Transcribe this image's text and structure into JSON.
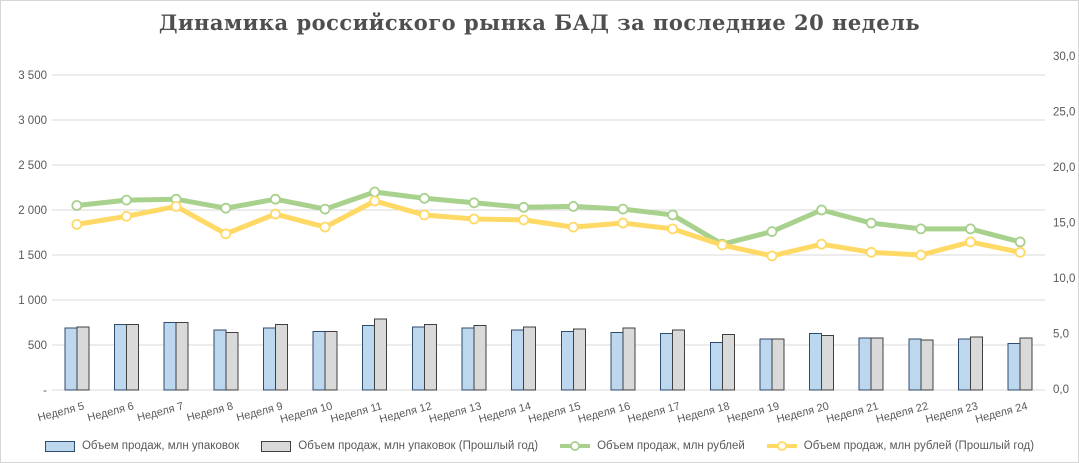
{
  "title": "Динамика российского рынка БАД за последние 20 недель",
  "colors": {
    "title_text": "#4f4f4f",
    "axis_text": "#595959",
    "gridline": "#d9d9d9",
    "frame_border": "#d6d6d6",
    "bar_current_fill": "#bdd7ee",
    "bar_current_stroke": "#2f4b6e",
    "bar_previous_fill": "#d9d9d9",
    "bar_previous_stroke": "#404040",
    "line_current": "#a9d18e",
    "line_previous": "#ffd966",
    "marker_fill": "#ffffff"
  },
  "chart_data": {
    "type": "combo-bar-line",
    "title": "Динамика российского рынка БАД за последние 20 недель",
    "categories": [
      "Неделя 5",
      "Неделя 6",
      "Неделя 7",
      "Неделя 8",
      "Неделя 9",
      "Неделя 10",
      "Неделя 11",
      "Неделя 12",
      "Неделя 13",
      "Неделя 14",
      "Неделя 15",
      "Неделя 16",
      "Неделя 17",
      "Неделя 18",
      "Неделя 19",
      "Неделя 20",
      "Неделя 21",
      "Неделя 22",
      "Неделя 23",
      "Неделя 24"
    ],
    "series": [
      {
        "name": "Объем продаж, млн упаковок",
        "type": "bar",
        "axis": "right",
        "fill": "#bdd7ee",
        "stroke": "#2f4b6e",
        "values": [
          5.5,
          5.8,
          6.0,
          5.3,
          5.5,
          5.2,
          5.7,
          5.6,
          5.5,
          5.3,
          5.2,
          5.1,
          5.0,
          4.2,
          4.5,
          5.0,
          4.6,
          4.5,
          4.5,
          4.1
        ]
      },
      {
        "name": "Объем продаж, млн упаковок (Прошлый год)",
        "type": "bar",
        "axis": "right",
        "fill": "#d9d9d9",
        "stroke": "#404040",
        "values": [
          5.6,
          5.8,
          6.0,
          5.1,
          5.8,
          5.2,
          6.3,
          5.8,
          5.7,
          5.6,
          5.4,
          5.5,
          5.3,
          4.9,
          4.5,
          4.8,
          4.6,
          4.4,
          4.7,
          4.6
        ]
      },
      {
        "name": "Объем продаж, млн рублей",
        "type": "line",
        "axis": "left",
        "color": "#a9d18e",
        "values": [
          2050,
          2110,
          2120,
          2020,
          2120,
          2010,
          2200,
          2130,
          2080,
          2030,
          2040,
          2010,
          1945,
          1620,
          1760,
          2000,
          1855,
          1790,
          1790,
          1645
        ]
      },
      {
        "name": "Объем продаж, млн рублей (Прошлый год)",
        "type": "line",
        "axis": "left",
        "color": "#ffd966",
        "values": [
          1840,
          1930,
          2040,
          1735,
          1955,
          1810,
          2100,
          1945,
          1900,
          1890,
          1810,
          1855,
          1790,
          1610,
          1490,
          1620,
          1530,
          1500,
          1645,
          1530
        ]
      }
    ],
    "left_axis": {
      "range": [
        0,
        3700
      ],
      "ticks": [
        {
          "value": 3500,
          "label": "3 500"
        },
        {
          "value": 3000,
          "label": "3 000"
        },
        {
          "value": 2500,
          "label": "2 500"
        },
        {
          "value": 2000,
          "label": "2 000"
        },
        {
          "value": 1500,
          "label": "1 500"
        },
        {
          "value": 1000,
          "label": "1 000"
        },
        {
          "value": 500,
          "label": "500"
        },
        {
          "value": 0,
          "label": "-"
        }
      ]
    },
    "right_axis": {
      "range": [
        0,
        30
      ],
      "ticks": [
        {
          "value": 30,
          "label": "30,0"
        },
        {
          "value": 25,
          "label": "25,0"
        },
        {
          "value": 20,
          "label": "20,0"
        },
        {
          "value": 15,
          "label": "15,0"
        },
        {
          "value": 10,
          "label": "10,0"
        },
        {
          "value": 5,
          "label": "5,0"
        },
        {
          "value": 0,
          "label": "0,0"
        }
      ]
    },
    "grid": true,
    "legend_position": "bottom"
  }
}
